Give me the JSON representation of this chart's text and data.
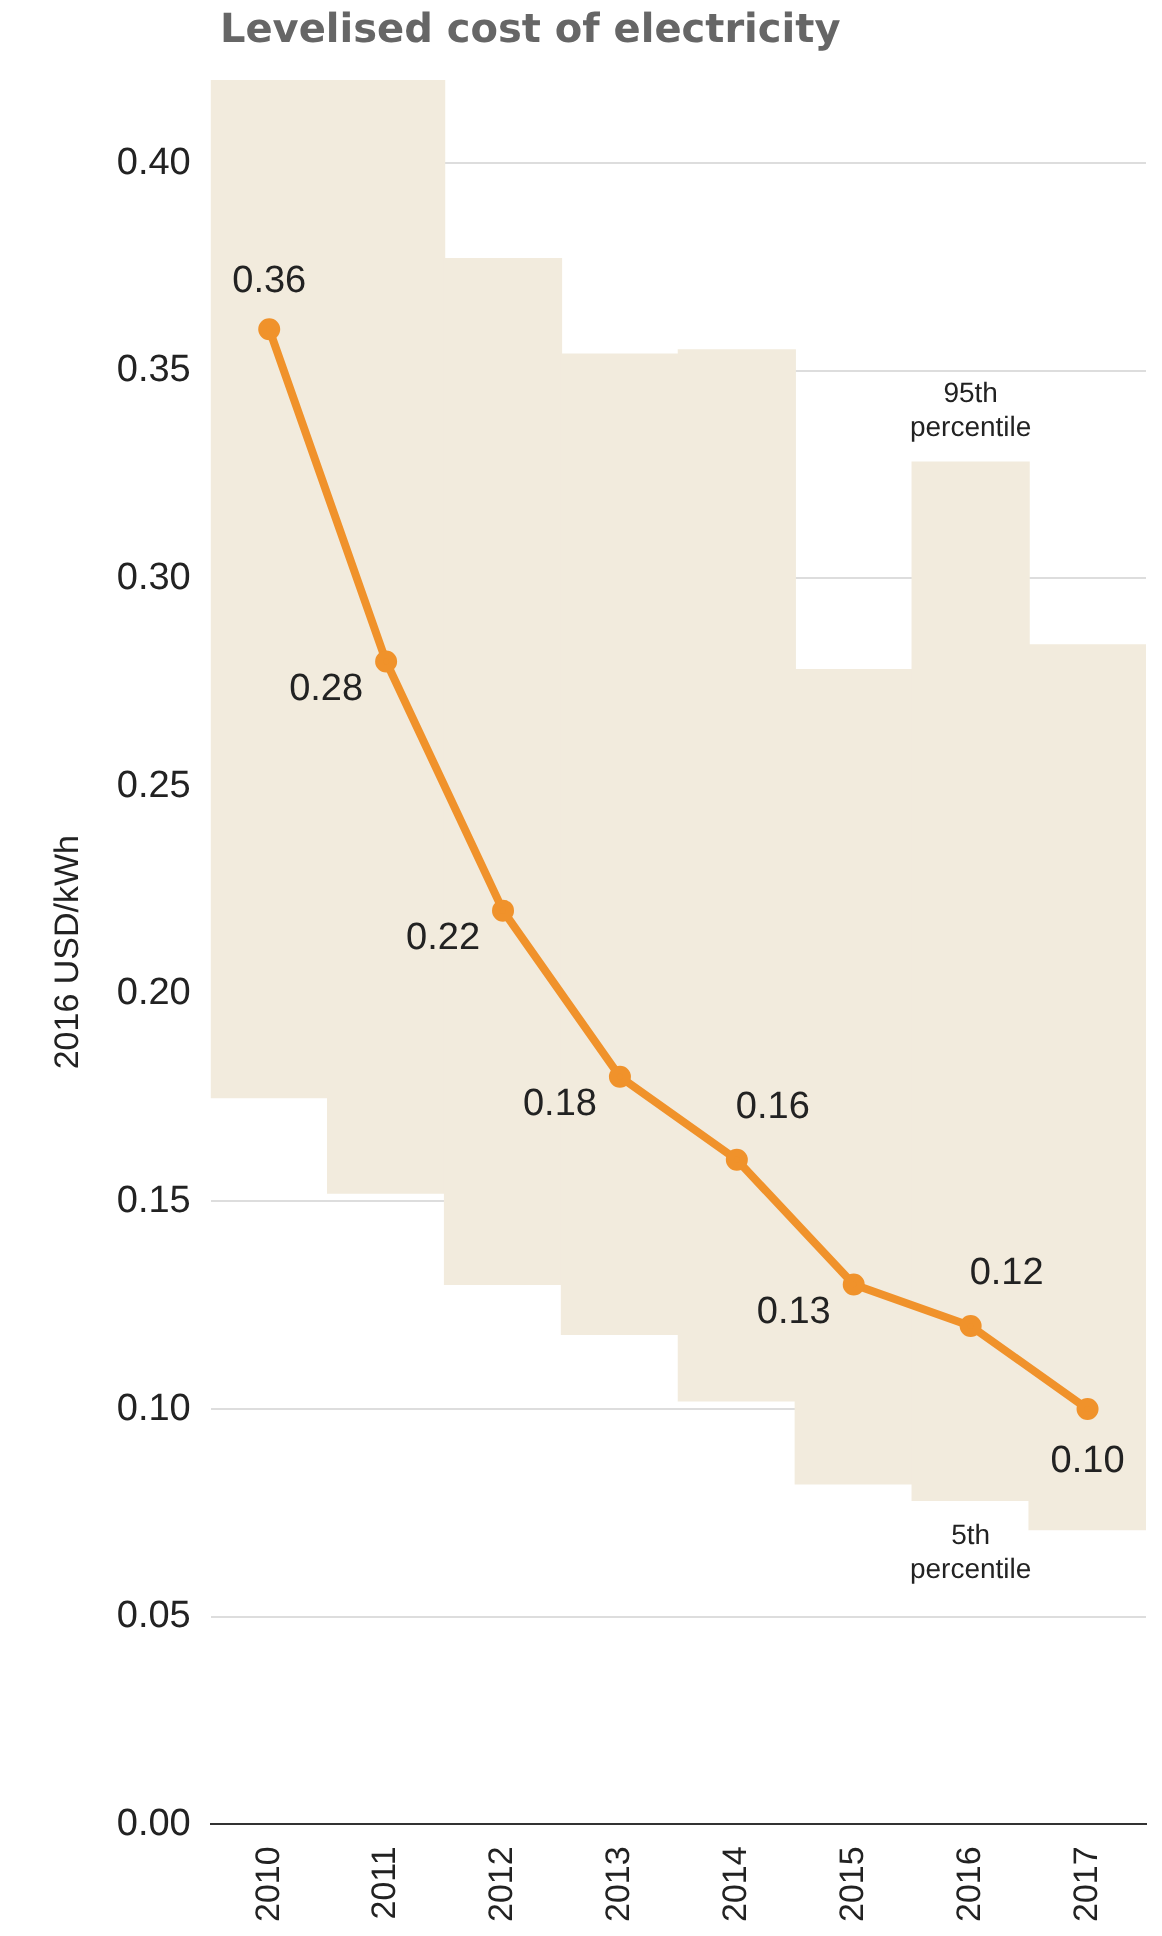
{
  "chart_data": {
    "type": "line",
    "title": "Levelised cost of electricity",
    "ylabel": "2016 USD/kWh",
    "categories": [
      "2010",
      "2011",
      "2012",
      "2013",
      "2014",
      "2015",
      "2016",
      "2017"
    ],
    "series": [
      {
        "type": "bar",
        "color": "#f2ebdd",
        "base": [
          0.175,
          0.152,
          0.13,
          0.118,
          0.102,
          0.082,
          0.078,
          0.071
        ],
        "values": [
          0.245,
          0.268,
          0.247,
          0.236,
          0.253,
          0.196,
          0.25,
          0.213
        ]
      },
      {
        "color": "#f0922b",
        "values": [
          0.36,
          0.28,
          0.22,
          0.18,
          0.16,
          0.13,
          0.12,
          0.1
        ],
        "value_labels": [
          "0.36",
          "0.28",
          "0.22",
          "0.18",
          "0.16",
          "0.13",
          "0.12",
          "0.10"
        ]
      }
    ],
    "ylim": [
      0,
      0.42
    ],
    "yticks": [
      {
        "value": 0,
        "label": "0.00"
      },
      {
        "value": 0.05,
        "label": "0.05"
      },
      {
        "value": 0.1,
        "label": "0.10"
      },
      {
        "value": 0.15,
        "label": "0.15"
      },
      {
        "value": 0.2,
        "label": "0.20"
      },
      {
        "value": 0.25,
        "label": "0.25"
      },
      {
        "value": 0.3,
        "label": "0.30"
      },
      {
        "value": 0.35,
        "label": "0.35"
      },
      {
        "value": 0.4,
        "label": "0.40"
      }
    ],
    "grid": "y",
    "legend": false,
    "marker": "circle",
    "line_style": "solid",
    "annotations": [
      {
        "text": "95th percentile",
        "x": "2016",
        "y": 0.328
      },
      {
        "text": "5th percentile",
        "x": "2016",
        "y": 0.078
      }
    ]
  }
}
